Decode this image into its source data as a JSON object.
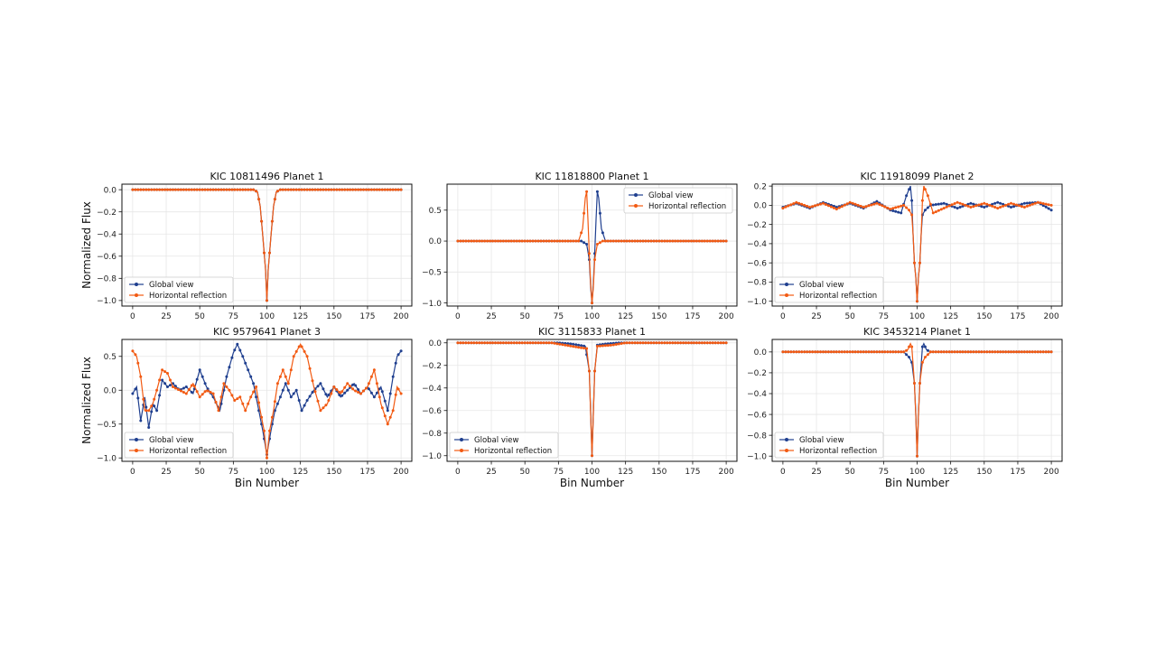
{
  "chart_data": [
    {
      "type": "line",
      "title": "KIC 10811496 Planet 1",
      "xlabel": "",
      "ylabel": "Normalized Flux",
      "xlim": [
        -8,
        208
      ],
      "ylim": [
        -1.05,
        0.05
      ],
      "xticks": [
        0,
        25,
        50,
        75,
        100,
        125,
        150,
        175,
        200
      ],
      "yticks": [
        0.0,
        -0.2,
        -0.4,
        -0.6,
        -0.8,
        -1.0
      ],
      "ytick_labels": [
        "0.0",
        "−0.2",
        "−0.4",
        "−0.6",
        "−0.8",
        "−1.0"
      ],
      "grid": true,
      "legend": "lower-left",
      "series": [
        {
          "name": "Global view",
          "color": "#1f3f8f",
          "x": [
            0,
            90,
            93,
            95,
            97,
            99,
            100,
            101,
            103,
            105,
            107,
            110,
            200
          ],
          "y": [
            0.0,
            0.0,
            -0.02,
            -0.15,
            -0.42,
            -0.72,
            -1.0,
            -0.72,
            -0.42,
            -0.15,
            -0.02,
            0.0,
            0.0
          ]
        },
        {
          "name": "Horizontal reflection",
          "color": "#f25a12",
          "x": [
            0,
            90,
            93,
            95,
            97,
            99,
            100,
            101,
            103,
            105,
            107,
            110,
            200
          ],
          "y": [
            0.0,
            0.0,
            -0.02,
            -0.15,
            -0.42,
            -0.72,
            -1.0,
            -0.72,
            -0.42,
            -0.15,
            -0.02,
            0.0,
            0.0
          ]
        }
      ]
    },
    {
      "type": "line",
      "title": "KIC 11818800 Planet 1",
      "xlabel": "",
      "ylabel": "",
      "xlim": [
        -8,
        208
      ],
      "ylim": [
        -1.05,
        0.92
      ],
      "xticks": [
        0,
        25,
        50,
        75,
        100,
        125,
        150,
        175,
        200
      ],
      "yticks": [
        0.5,
        0.0,
        -0.5,
        -1.0
      ],
      "ytick_labels": [
        "0.5",
        "0.0",
        "−0.5",
        "−1.0"
      ],
      "grid": true,
      "legend": "upper-right",
      "series": [
        {
          "name": "Global view",
          "color": "#1f3f8f",
          "x": [
            0,
            92,
            96,
            98,
            99,
            100,
            101,
            102,
            103,
            104,
            105,
            107,
            110,
            200
          ],
          "y": [
            0.0,
            0.0,
            -0.05,
            -0.3,
            -0.75,
            -1.0,
            -0.7,
            -0.2,
            0.35,
            0.8,
            0.7,
            0.2,
            0.0,
            0.0
          ]
        },
        {
          "name": "Horizontal reflection",
          "color": "#f25a12",
          "x": [
            0,
            90,
            93,
            95,
            96,
            97,
            98,
            99,
            100,
            101,
            102,
            104,
            108,
            200
          ],
          "y": [
            0.0,
            0.0,
            0.2,
            0.7,
            0.8,
            0.35,
            -0.2,
            -0.7,
            -1.0,
            -0.75,
            -0.3,
            -0.05,
            0.0,
            0.0
          ]
        }
      ]
    },
    {
      "type": "line",
      "title": "KIC 11918099 Planet 2",
      "xlabel": "",
      "ylabel": "",
      "xlim": [
        -8,
        208
      ],
      "ylim": [
        -1.05,
        0.22
      ],
      "xticks": [
        0,
        25,
        50,
        75,
        100,
        125,
        150,
        175,
        200
      ],
      "yticks": [
        0.2,
        0.0,
        -0.2,
        -0.4,
        -0.6,
        -0.8,
        -1.0
      ],
      "ytick_labels": [
        "0.2",
        "0.0",
        "−0.2",
        "−0.4",
        "−0.6",
        "−0.8",
        "−1.0"
      ],
      "grid": true,
      "legend": "lower-left",
      "series": [
        {
          "name": "Global view",
          "color": "#1f3f8f",
          "x": [
            0,
            10,
            20,
            30,
            40,
            50,
            60,
            70,
            80,
            88,
            92,
            95,
            96,
            97,
            98,
            99,
            100,
            101,
            102,
            103,
            104,
            106,
            110,
            120,
            130,
            140,
            150,
            160,
            170,
            180,
            190,
            200
          ],
          "y": [
            -0.02,
            0.02,
            -0.03,
            0.03,
            -0.02,
            0.02,
            -0.03,
            0.04,
            -0.05,
            -0.08,
            0.1,
            0.2,
            0.05,
            -0.3,
            -0.6,
            -0.75,
            -1.0,
            -0.75,
            -0.6,
            -0.3,
            -0.1,
            -0.05,
            0.0,
            0.02,
            -0.03,
            0.02,
            -0.02,
            0.03,
            -0.02,
            0.02,
            0.03,
            -0.05
          ]
        },
        {
          "name": "Horizontal reflection",
          "color": "#f25a12",
          "x": [
            0,
            10,
            20,
            30,
            40,
            50,
            60,
            70,
            80,
            90,
            94,
            96,
            97,
            98,
            99,
            100,
            101,
            102,
            103,
            104,
            105,
            108,
            112,
            120,
            130,
            140,
            150,
            160,
            170,
            180,
            190,
            200
          ],
          "y": [
            -0.03,
            0.03,
            -0.02,
            0.02,
            -0.04,
            0.03,
            -0.02,
            0.02,
            -0.04,
            0.0,
            -0.05,
            -0.1,
            -0.3,
            -0.6,
            -0.75,
            -1.0,
            -0.75,
            -0.6,
            -0.3,
            0.05,
            0.2,
            0.1,
            -0.08,
            -0.03,
            0.03,
            -0.02,
            0.02,
            -0.03,
            0.02,
            -0.02,
            0.03,
            0.0
          ]
        }
      ]
    },
    {
      "type": "line",
      "title": "KIC 9579641 Planet 3",
      "xlabel": "Bin Number",
      "ylabel": "Normalized Flux",
      "xlim": [
        -8,
        208
      ],
      "ylim": [
        -1.05,
        0.75
      ],
      "xticks": [
        0,
        25,
        50,
        75,
        100,
        125,
        150,
        175,
        200
      ],
      "yticks": [
        0.5,
        0.0,
        -0.5,
        -1.0
      ],
      "ytick_labels": [
        "0.5",
        "0.0",
        "−0.5",
        "−1.0"
      ],
      "grid": true,
      "legend": "lower-left",
      "series": [
        {
          "name": "Global view",
          "color": "#1f3f8f",
          "x": [
            0,
            3,
            6,
            9,
            12,
            15,
            18,
            22,
            26,
            30,
            35,
            40,
            45,
            50,
            55,
            60,
            65,
            70,
            75,
            78,
            82,
            86,
            90,
            94,
            97,
            100,
            103,
            106,
            110,
            114,
            118,
            122,
            126,
            130,
            135,
            140,
            145,
            150,
            155,
            160,
            165,
            170,
            175,
            180,
            185,
            190,
            194,
            197,
            200
          ],
          "y": [
            -0.05,
            0.05,
            -0.45,
            -0.1,
            -0.55,
            -0.2,
            -0.3,
            0.15,
            0.05,
            0.1,
            0.0,
            0.05,
            -0.05,
            0.3,
            0.05,
            -0.1,
            -0.3,
            0.2,
            0.55,
            0.68,
            0.5,
            0.3,
            0.1,
            -0.3,
            -0.6,
            -0.95,
            -0.6,
            -0.3,
            -0.1,
            0.1,
            -0.1,
            0.0,
            -0.3,
            -0.15,
            0.0,
            0.1,
            -0.1,
            0.05,
            -0.1,
            0.0,
            0.1,
            -0.05,
            0.05,
            -0.1,
            0.05,
            -0.3,
            0.2,
            0.5,
            0.58
          ]
        },
        {
          "name": "Horizontal reflection",
          "color": "#f25a12",
          "x": [
            0,
            3,
            6,
            9,
            12,
            15,
            18,
            22,
            26,
            30,
            35,
            40,
            45,
            50,
            55,
            60,
            64,
            68,
            72,
            76,
            80,
            84,
            88,
            92,
            95,
            98,
            100,
            102,
            105,
            108,
            112,
            116,
            120,
            125,
            130,
            135,
            140,
            145,
            150,
            155,
            160,
            165,
            170,
            175,
            180,
            185,
            190,
            194,
            197,
            200
          ],
          "y": [
            0.58,
            0.5,
            0.2,
            -0.3,
            -0.3,
            -0.2,
            0.0,
            0.3,
            0.25,
            0.05,
            0.0,
            -0.05,
            0.1,
            -0.1,
            0.0,
            -0.05,
            -0.3,
            0.1,
            0.0,
            -0.15,
            -0.1,
            -0.3,
            -0.1,
            0.05,
            -0.3,
            -0.6,
            -1.0,
            -0.6,
            -0.3,
            0.1,
            0.3,
            0.1,
            0.5,
            0.68,
            0.5,
            0.05,
            -0.3,
            -0.2,
            0.05,
            -0.05,
            0.1,
            0.0,
            -0.05,
            0.05,
            0.3,
            -0.2,
            -0.5,
            -0.3,
            0.05,
            -0.05
          ]
        }
      ]
    },
    {
      "type": "line",
      "title": "KIC 3115833 Planet 1",
      "xlabel": "Bin Number",
      "ylabel": "",
      "xlim": [
        -8,
        208
      ],
      "ylim": [
        -1.05,
        0.03
      ],
      "xticks": [
        0,
        25,
        50,
        75,
        100,
        125,
        150,
        175,
        200
      ],
      "yticks": [
        0.0,
        -0.2,
        -0.4,
        -0.6,
        -0.8,
        -1.0
      ],
      "ytick_labels": [
        "0.0",
        "−0.2",
        "−0.4",
        "−0.6",
        "−0.8",
        "−1.0"
      ],
      "grid": true,
      "legend": "lower-left",
      "series": [
        {
          "name": "Global view",
          "color": "#1f3f8f",
          "x": [
            0,
            75,
            85,
            95,
            98,
            99,
            100,
            101,
            102,
            104,
            110,
            120,
            200
          ],
          "y": [
            0.0,
            0.0,
            -0.01,
            -0.03,
            -0.25,
            -0.63,
            -1.0,
            -0.63,
            -0.25,
            -0.02,
            -0.01,
            0.0,
            0.0
          ]
        },
        {
          "name": "Horizontal reflection",
          "color": "#f25a12",
          "x": [
            0,
            70,
            80,
            90,
            96,
            98,
            99,
            100,
            101,
            102,
            104,
            115,
            125,
            200
          ],
          "y": [
            0.0,
            0.0,
            -0.02,
            -0.04,
            -0.05,
            -0.25,
            -0.63,
            -1.0,
            -0.63,
            -0.25,
            -0.03,
            -0.02,
            0.0,
            0.0
          ]
        }
      ]
    },
    {
      "type": "line",
      "title": "KIC 3453214 Planet 1",
      "xlabel": "Bin Number",
      "ylabel": "",
      "xlim": [
        -8,
        208
      ],
      "ylim": [
        -1.05,
        0.12
      ],
      "xticks": [
        0,
        25,
        50,
        75,
        100,
        125,
        150,
        175,
        200
      ],
      "yticks": [
        0.0,
        -0.2,
        -0.4,
        -0.6,
        -0.8,
        -1.0
      ],
      "ytick_labels": [
        "0.0",
        "−0.2",
        "−0.4",
        "−0.6",
        "−0.8",
        "−1.0"
      ],
      "grid": true,
      "legend": "lower-left",
      "series": [
        {
          "name": "Global view",
          "color": "#1f3f8f",
          "x": [
            0,
            90,
            94,
            96,
            98,
            99,
            100,
            101,
            102,
            104,
            105,
            107,
            110,
            200
          ],
          "y": [
            0.0,
            0.0,
            -0.05,
            -0.1,
            -0.3,
            -0.6,
            -1.0,
            -0.6,
            -0.3,
            0.05,
            0.08,
            0.02,
            0.0,
            0.0
          ]
        },
        {
          "name": "Horizontal reflection",
          "color": "#f25a12",
          "x": [
            0,
            90,
            93,
            95,
            96,
            98,
            99,
            100,
            101,
            102,
            104,
            106,
            110,
            200
          ],
          "y": [
            0.0,
            0.0,
            0.02,
            0.08,
            0.05,
            -0.3,
            -0.6,
            -1.0,
            -0.6,
            -0.3,
            -0.1,
            -0.05,
            0.0,
            0.0
          ]
        }
      ]
    }
  ]
}
